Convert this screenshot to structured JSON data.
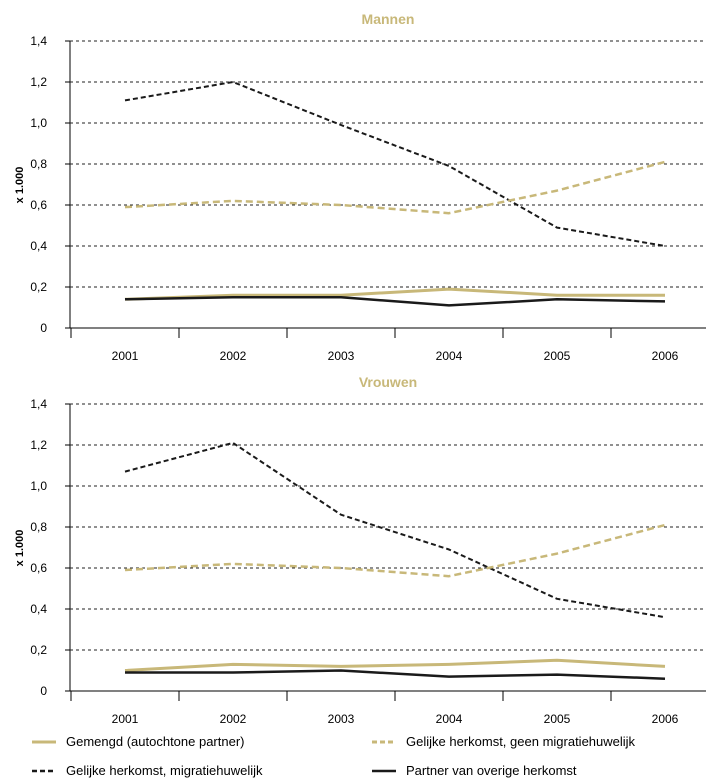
{
  "colors": {
    "title": "#c8b879",
    "gemengd": "#c8b879",
    "gelijk_geen": "#c8b879",
    "gelijk_migr": "#1a1a1a",
    "overig": "#1a1a1a",
    "grid": "#222222"
  },
  "chart_data": [
    {
      "type": "line",
      "title": "Mannen",
      "ylabel": "x 1.000",
      "xlabel": "",
      "ylim": [
        0,
        1.4
      ],
      "y_ticks": [
        "0",
        "0,2",
        "0,4",
        "0,6",
        "0,8",
        "1,0",
        "1,2",
        "1,4"
      ],
      "categories": [
        "2001",
        "2002",
        "2003",
        "2004",
        "2005",
        "2006"
      ],
      "series": [
        {
          "name": "Gemengd (autochtone partner)",
          "values": [
            0.14,
            0.16,
            0.16,
            0.19,
            0.16,
            0.16
          ]
        },
        {
          "name": "Gelijke herkomst, geen migratiehuwelijk",
          "values": [
            0.59,
            0.62,
            0.6,
            0.56,
            0.67,
            0.81
          ]
        },
        {
          "name": "Gelijke herkomst, migratiehuwelijk",
          "values": [
            1.11,
            1.2,
            0.99,
            0.79,
            0.49,
            0.4
          ]
        },
        {
          "name": "Partner van overige herkomst",
          "values": [
            0.14,
            0.15,
            0.15,
            0.11,
            0.14,
            0.13
          ]
        }
      ]
    },
    {
      "type": "line",
      "title": "Vrouwen",
      "ylabel": "x 1.000",
      "xlabel": "",
      "ylim": [
        0,
        1.4
      ],
      "y_ticks": [
        "0",
        "0,2",
        "0,4",
        "0,6",
        "0,8",
        "1,0",
        "1,2",
        "1,4"
      ],
      "categories": [
        "2001",
        "2002",
        "2003",
        "2004",
        "2005",
        "2006"
      ],
      "series": [
        {
          "name": "Gemengd (autochtone partner)",
          "values": [
            0.1,
            0.13,
            0.12,
            0.13,
            0.15,
            0.12
          ]
        },
        {
          "name": "Gelijke herkomst, geen migratiehuwelijk",
          "values": [
            0.59,
            0.62,
            0.6,
            0.56,
            0.67,
            0.81
          ]
        },
        {
          "name": "Gelijke herkomst, migratiehuwelijk",
          "values": [
            1.07,
            1.21,
            0.86,
            0.69,
            0.45,
            0.36
          ]
        },
        {
          "name": "Partner van overige herkomst",
          "values": [
            0.09,
            0.09,
            0.1,
            0.07,
            0.08,
            0.06
          ]
        }
      ]
    }
  ],
  "legend": [
    {
      "label": "Gemengd (autochtone partner)",
      "style": "solid",
      "color": "#c8b879"
    },
    {
      "label": "Gelijke herkomst, geen migratiehuwelijk",
      "style": "dashed",
      "color": "#c8b879"
    },
    {
      "label": "Gelijke herkomst, migratiehuwelijk",
      "style": "dashed",
      "color": "#1a1a1a"
    },
    {
      "label": "Partner van overige herkomst",
      "style": "solid",
      "color": "#1a1a1a"
    }
  ]
}
